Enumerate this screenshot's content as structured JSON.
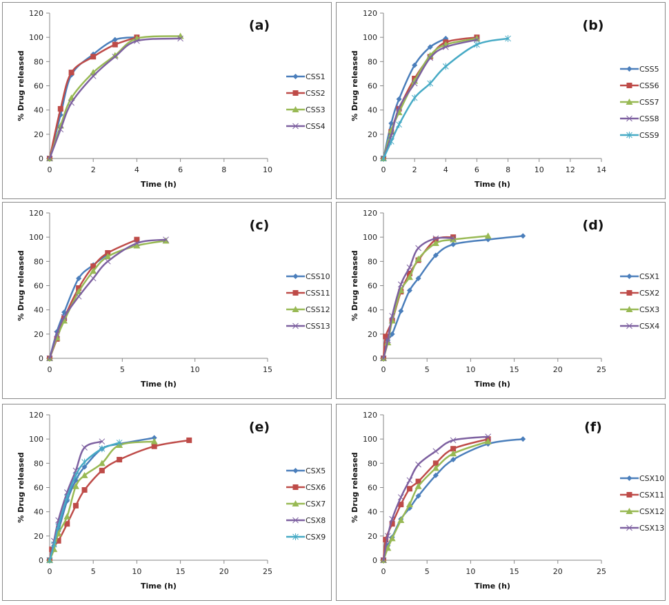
{
  "figure": {
    "colors": {
      "blue": "#4a7ebb",
      "red": "#be4b48",
      "green": "#98b954",
      "purple": "#7d60a0",
      "cyan": "#46aac5",
      "axis": "#868686",
      "frame": "#878787"
    }
  },
  "chart_data": [
    {
      "type": "line",
      "panel_label": "(a)",
      "xlabel": "Time (h)",
      "ylabel": "% Drug released",
      "xlim": [
        0,
        10
      ],
      "xticks": [
        0,
        2,
        4,
        6,
        8,
        10
      ],
      "ylim": [
        0,
        120
      ],
      "yticks": [
        0,
        20,
        40,
        60,
        80,
        100,
        120
      ],
      "grid": false,
      "legend": "right",
      "series": [
        {
          "name": "CSS1",
          "color": "#4a7ebb",
          "marker": "diamond",
          "x": [
            0,
            0.5,
            1,
            2,
            3,
            4
          ],
          "y": [
            0,
            36,
            69,
            86,
            98,
            100
          ]
        },
        {
          "name": "CSS2",
          "color": "#be4b48",
          "marker": "square",
          "x": [
            0,
            0.5,
            1,
            2,
            3,
            4
          ],
          "y": [
            0,
            41,
            71,
            84,
            94,
            100
          ]
        },
        {
          "name": "CSS3",
          "color": "#98b954",
          "marker": "triangle",
          "x": [
            0,
            0.5,
            1,
            2,
            3,
            4,
            6
          ],
          "y": [
            0,
            27,
            50,
            71,
            85,
            99,
            101
          ]
        },
        {
          "name": "CSS4",
          "color": "#7d60a0",
          "marker": "x",
          "x": [
            0,
            0.5,
            1,
            2,
            3,
            4,
            6
          ],
          "y": [
            0,
            24,
            46,
            68,
            84,
            97,
            99
          ]
        }
      ]
    },
    {
      "type": "line",
      "panel_label": "(b)",
      "xlabel": "Time (h)",
      "ylabel": "% Drug released",
      "xlim": [
        0,
        14
      ],
      "xticks": [
        0,
        2,
        4,
        6,
        8,
        10,
        12,
        14
      ],
      "ylim": [
        0,
        120
      ],
      "yticks": [
        0,
        20,
        40,
        60,
        80,
        100,
        120
      ],
      "grid": false,
      "legend": "right",
      "series": [
        {
          "name": "CSS5",
          "color": "#4a7ebb",
          "marker": "diamond",
          "x": [
            0,
            0.5,
            1,
            2,
            3,
            4
          ],
          "y": [
            0,
            29,
            49,
            77,
            92,
            99
          ]
        },
        {
          "name": "CSS6",
          "color": "#be4b48",
          "marker": "square",
          "x": [
            0,
            0.5,
            1,
            2,
            3,
            4,
            6
          ],
          "y": [
            0,
            22,
            41,
            66,
            84,
            96,
            100
          ]
        },
        {
          "name": "CSS7",
          "color": "#98b954",
          "marker": "triangle",
          "x": [
            0,
            0.5,
            1,
            2,
            3,
            4,
            6
          ],
          "y": [
            0,
            23,
            38,
            64,
            85,
            94,
            99
          ]
        },
        {
          "name": "CSS8",
          "color": "#7d60a0",
          "marker": "x",
          "x": [
            0,
            0.5,
            1,
            2,
            3,
            4,
            6
          ],
          "y": [
            0,
            19,
            42,
            62,
            83,
            92,
            98
          ]
        },
        {
          "name": "CSS9",
          "color": "#46aac5",
          "marker": "star",
          "x": [
            0,
            0.5,
            1,
            2,
            3,
            4,
            6,
            8
          ],
          "y": [
            0,
            14,
            28,
            50,
            62,
            76,
            94,
            99
          ]
        }
      ]
    },
    {
      "type": "line",
      "panel_label": "(c)",
      "xlabel": "Time (h)",
      "ylabel": "% Drug released",
      "xlim": [
        0,
        15
      ],
      "xticks": [
        0,
        5,
        10,
        15
      ],
      "ylim": [
        0,
        120
      ],
      "yticks": [
        0,
        20,
        40,
        60,
        80,
        100,
        120
      ],
      "grid": false,
      "legend": "right",
      "series": [
        {
          "name": "CSS10",
          "color": "#4a7ebb",
          "marker": "diamond",
          "x": [
            0,
            0.5,
            1,
            2,
            3,
            4
          ],
          "y": [
            0,
            22,
            38,
            66,
            77,
            86
          ]
        },
        {
          "name": "CSS11",
          "color": "#be4b48",
          "marker": "square",
          "x": [
            0,
            0.5,
            1,
            2,
            3,
            4,
            6
          ],
          "y": [
            0,
            16,
            33,
            58,
            76,
            87,
            98
          ]
        },
        {
          "name": "CSS12",
          "color": "#98b954",
          "marker": "triangle",
          "x": [
            0,
            0.5,
            1,
            2,
            3,
            4,
            6,
            8
          ],
          "y": [
            0,
            17,
            31,
            55,
            72,
            84,
            93,
            97
          ]
        },
        {
          "name": "CSS13",
          "color": "#7d60a0",
          "marker": "x",
          "x": [
            0,
            0.5,
            1,
            2,
            3,
            4,
            6,
            8
          ],
          "y": [
            0,
            20,
            34,
            51,
            66,
            80,
            95,
            98
          ]
        }
      ]
    },
    {
      "type": "line",
      "panel_label": "(d)",
      "xlabel": "Time (h)",
      "ylabel": "% Drug released",
      "xlim": [
        0,
        25
      ],
      "xticks": [
        0,
        5,
        10,
        15,
        20,
        25
      ],
      "ylim": [
        0,
        120
      ],
      "yticks": [
        0,
        20,
        40,
        60,
        80,
        100,
        120
      ],
      "grid": false,
      "legend": "right",
      "series": [
        {
          "name": "CSX1",
          "color": "#4a7ebb",
          "marker": "diamond",
          "x": [
            0,
            0.5,
            1,
            2,
            3,
            4,
            6,
            8,
            12,
            16
          ],
          "y": [
            0,
            15,
            20,
            39,
            56,
            66,
            85,
            94,
            98,
            101
          ]
        },
        {
          "name": "CSX2",
          "color": "#be4b48",
          "marker": "square",
          "x": [
            0,
            0.25,
            1,
            2,
            3,
            4,
            6,
            8
          ],
          "y": [
            0,
            18,
            31,
            55,
            70,
            81,
            98,
            100
          ]
        },
        {
          "name": "CSX3",
          "color": "#98b954",
          "marker": "triangle",
          "x": [
            0,
            0.5,
            1,
            2,
            3,
            4,
            6,
            8,
            12
          ],
          "y": [
            0,
            13,
            31,
            56,
            67,
            82,
            95,
            98,
            101
          ]
        },
        {
          "name": "CSX4",
          "color": "#7d60a0",
          "marker": "x",
          "x": [
            0,
            0.5,
            1,
            2,
            3,
            4,
            6,
            8
          ],
          "y": [
            0,
            15,
            35,
            61,
            75,
            91,
            99,
            99
          ]
        }
      ]
    },
    {
      "type": "line",
      "panel_label": "(e)",
      "xlabel": "Time (h)",
      "ylabel": "% Drug released",
      "xlim": [
        0,
        25
      ],
      "xticks": [
        0,
        5,
        10,
        15,
        20,
        25
      ],
      "ylim": [
        0,
        120
      ],
      "yticks": [
        0,
        20,
        40,
        60,
        80,
        100,
        120
      ],
      "grid": false,
      "legend": "right",
      "series": [
        {
          "name": "CSX5",
          "color": "#4a7ebb",
          "marker": "diamond",
          "x": [
            0,
            0.5,
            1,
            2,
            3,
            4,
            6,
            8,
            12
          ],
          "y": [
            0,
            12,
            24,
            49,
            66,
            77,
            92,
            96,
            101
          ]
        },
        {
          "name": "CSX6",
          "color": "#be4b48",
          "marker": "square",
          "x": [
            0,
            0.25,
            1,
            2,
            3,
            4,
            6,
            8,
            12,
            16
          ],
          "y": [
            0,
            9,
            16,
            30,
            45,
            58,
            74,
            83,
            94,
            99
          ]
        },
        {
          "name": "CSX7",
          "color": "#98b954",
          "marker": "triangle",
          "x": [
            0,
            0.5,
            1,
            2,
            3,
            4,
            6,
            8,
            12
          ],
          "y": [
            0,
            9,
            22,
            36,
            61,
            70,
            80,
            95,
            98
          ]
        },
        {
          "name": "CSX8",
          "color": "#7d60a0",
          "marker": "x",
          "x": [
            0,
            0.5,
            1,
            2,
            3,
            4,
            6
          ],
          "y": [
            0,
            16,
            33,
            56,
            74,
            93,
            98
          ]
        },
        {
          "name": "CSX9",
          "color": "#46aac5",
          "marker": "star",
          "x": [
            0,
            0.5,
            1,
            2,
            3,
            4,
            6,
            8
          ],
          "y": [
            0,
            13,
            28,
            52,
            70,
            81,
            92,
            97
          ]
        }
      ]
    },
    {
      "type": "line",
      "panel_label": "(f)",
      "xlabel": "Time (h)",
      "ylabel": "% Drug released",
      "xlim": [
        0,
        25
      ],
      "xticks": [
        0,
        5,
        10,
        15,
        20,
        25
      ],
      "ylim": [
        0,
        120
      ],
      "yticks": [
        0,
        20,
        40,
        60,
        80,
        100,
        120
      ],
      "grid": false,
      "legend": "right",
      "series": [
        {
          "name": "CSX10",
          "color": "#4a7ebb",
          "marker": "diamond",
          "x": [
            0,
            0.5,
            1,
            2,
            3,
            4,
            6,
            8,
            12,
            16
          ],
          "y": [
            0,
            12,
            19,
            34,
            43,
            53,
            70,
            83,
            96,
            100
          ]
        },
        {
          "name": "CSX11",
          "color": "#be4b48",
          "marker": "square",
          "x": [
            0,
            0.25,
            1,
            2,
            3,
            4,
            6,
            8,
            12
          ],
          "y": [
            0,
            17,
            30,
            46,
            59,
            65,
            80,
            92,
            100
          ]
        },
        {
          "name": "CSX12",
          "color": "#98b954",
          "marker": "triangle",
          "x": [
            0,
            0.5,
            1,
            2,
            3,
            4,
            6,
            8,
            12
          ],
          "y": [
            0,
            10,
            18,
            33,
            46,
            61,
            76,
            88,
            98
          ]
        },
        {
          "name": "CSX13",
          "color": "#7d60a0",
          "marker": "x",
          "x": [
            0,
            0.5,
            1,
            2,
            3,
            4,
            6,
            8,
            12
          ],
          "y": [
            0,
            20,
            34,
            52,
            66,
            79,
            90,
            99,
            102
          ]
        }
      ]
    }
  ]
}
